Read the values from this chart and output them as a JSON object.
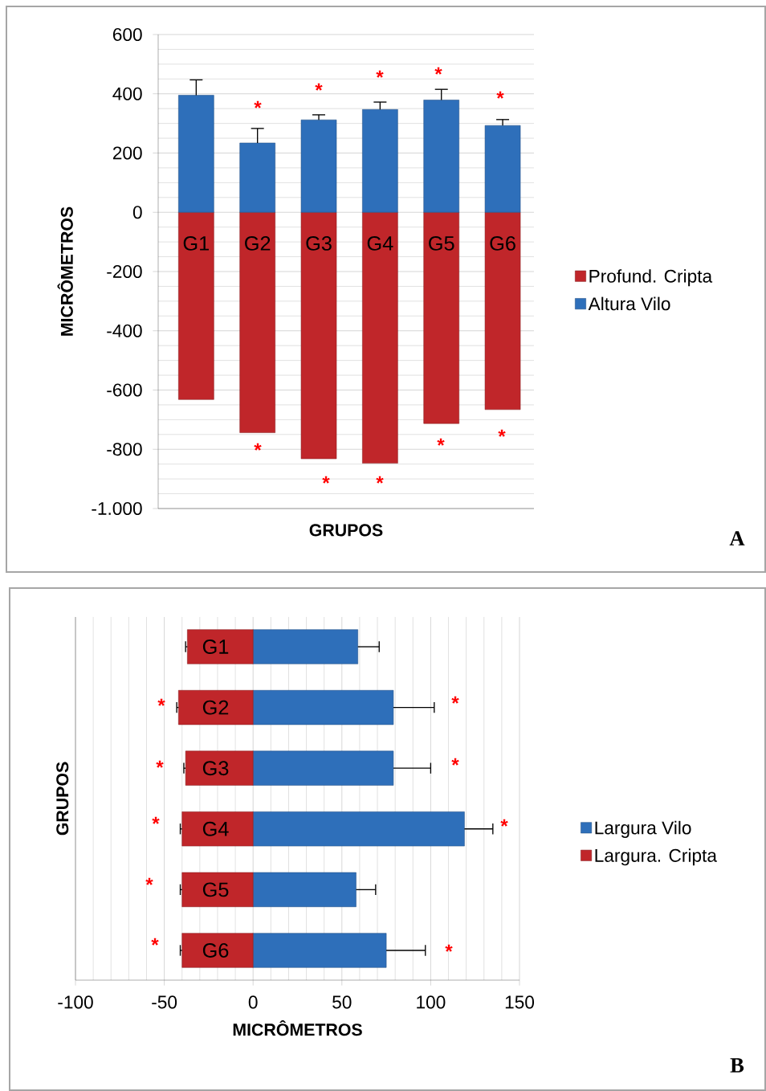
{
  "chart_data": [
    {
      "type": "bar",
      "stacked": true,
      "xlabel": "GRUPOS",
      "ylabel": "MICRÔMETROS",
      "categories": [
        "G1",
        "G2",
        "G3",
        "G4",
        "G5",
        "G6"
      ],
      "series": [
        {
          "name": "Profund. Cripta",
          "color": "#c0262a",
          "values": [
            -632,
            -744,
            -832,
            -847,
            -713,
            -666
          ]
        },
        {
          "name": "Altura Vilo",
          "color": "#2e6fba",
          "values": [
            395,
            234,
            312,
            347,
            379,
            293
          ],
          "errors": [
            [
              395,
              447
            ],
            [
              234,
              283
            ],
            [
              312,
              329
            ],
            [
              347,
              372
            ],
            [
              379,
              415
            ],
            [
              293,
              313
            ]
          ]
        }
      ],
      "ylim": [
        -1000,
        600
      ],
      "yticks": [
        {
          "value": -1000,
          "label": "-1.000"
        },
        -800,
        -600,
        -400,
        -200,
        0,
        200,
        400,
        600
      ],
      "grid": "y",
      "legend": "right",
      "annotations": [
        "*",
        "*",
        "*",
        "*",
        "*",
        "*",
        "*",
        "*",
        "*",
        "*",
        "A"
      ]
    },
    {
      "type": "bar",
      "stacked": true,
      "orientation": "horizontal",
      "xlabel": "MICRÔMETROS",
      "ylabel": "GRUPOS",
      "categories": [
        "G1",
        "G2",
        "G3",
        "G4",
        "G5",
        "G6"
      ],
      "series": [
        {
          "name": "Largura Vilo",
          "color": "#2e6fba",
          "values": [
            59,
            79,
            79,
            119,
            58,
            75
          ],
          "errors": [
            [
              59,
              71
            ],
            [
              79,
              102
            ],
            [
              79,
              100
            ],
            [
              119,
              135
            ],
            [
              58,
              69
            ],
            [
              75,
              97
            ]
          ]
        },
        {
          "name": "Largura. Cripta",
          "color": "#c0262a",
          "values": [
            -37,
            -42,
            -38,
            -40,
            -40,
            -40
          ],
          "errors": [
            [
              -38,
              -37
            ],
            [
              -43,
              -42
            ],
            [
              -39,
              -38
            ],
            [
              -41,
              -40
            ],
            [
              -41,
              -40
            ],
            [
              -41,
              -40
            ]
          ]
        }
      ],
      "xlim": [
        -100,
        150
      ],
      "xticks": [
        -100,
        -50,
        0,
        50,
        100,
        150
      ],
      "grid": "x",
      "legend": "right",
      "annotations": [
        "*",
        "*",
        "*",
        "*",
        "*",
        "*",
        "*",
        "*",
        "*",
        "B"
      ]
    }
  ]
}
